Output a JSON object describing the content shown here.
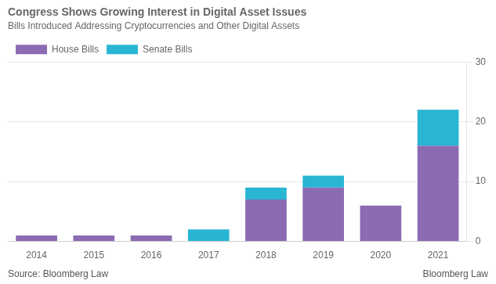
{
  "chart_data": {
    "type": "bar",
    "title": "Congress Shows Growing Interest in Digital Asset Issues",
    "subtitle": "Bills Introduced Addressing Cryptocurrencies and Other Digital Assets",
    "categories": [
      "2014",
      "2015",
      "2016",
      "2017",
      "2018",
      "2019",
      "2020",
      "2021"
    ],
    "series": [
      {
        "name": "House Bills",
        "color": "#8B6BB1",
        "values": [
          1,
          1,
          1,
          0,
          7,
          9,
          6,
          16
        ]
      },
      {
        "name": "Senate Bills",
        "color": "#29B5D4",
        "values": [
          0,
          0,
          0,
          2,
          2,
          2,
          0,
          6
        ]
      }
    ],
    "stacked": true,
    "ylim": [
      0,
      30
    ],
    "yticks": [
      0,
      10,
      20,
      30
    ],
    "grid": true,
    "legend": "upper left",
    "annotations": [
      "Source: Bloomberg Law",
      "Bloomberg Law"
    ]
  }
}
